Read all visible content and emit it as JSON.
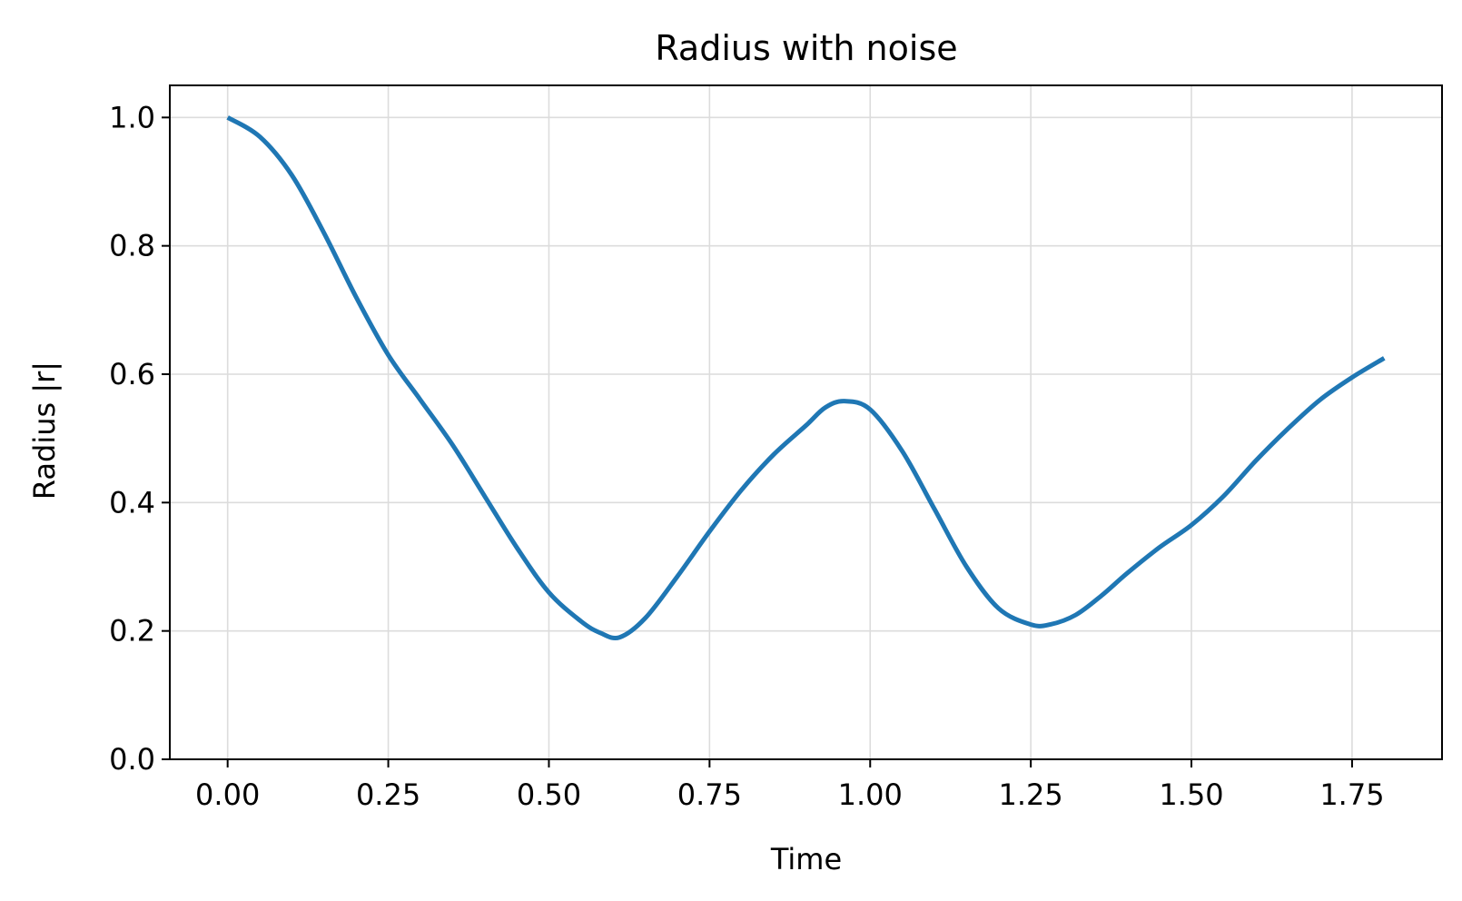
{
  "chart_data": {
    "type": "line",
    "title": "Radius with noise",
    "xlabel": "Time",
    "ylabel": "Radius |r|",
    "xlim": [
      -0.09,
      1.89
    ],
    "ylim": [
      0.0,
      1.05
    ],
    "x_ticks": [
      0.0,
      0.25,
      0.5,
      0.75,
      1.0,
      1.25,
      1.5,
      1.75
    ],
    "x_tick_labels": [
      "0.00",
      "0.25",
      "0.50",
      "0.75",
      "1.00",
      "1.25",
      "1.50",
      "1.75"
    ],
    "y_ticks": [
      0.0,
      0.2,
      0.4,
      0.6,
      0.8,
      1.0
    ],
    "y_tick_labels": [
      "0.0",
      "0.2",
      "0.4",
      "0.6",
      "0.8",
      "1.0"
    ],
    "grid": true,
    "line_color": "#1f77b4",
    "series": [
      {
        "x": [
          0.0,
          0.05,
          0.1,
          0.15,
          0.2,
          0.25,
          0.3,
          0.35,
          0.4,
          0.45,
          0.5,
          0.55,
          0.58,
          0.61,
          0.65,
          0.7,
          0.75,
          0.8,
          0.85,
          0.9,
          0.93,
          0.96,
          1.0,
          1.05,
          1.1,
          1.15,
          1.2,
          1.25,
          1.28,
          1.32,
          1.36,
          1.4,
          1.45,
          1.5,
          1.55,
          1.6,
          1.65,
          1.7,
          1.75,
          1.8
        ],
        "y": [
          1.0,
          0.97,
          0.91,
          0.82,
          0.72,
          0.63,
          0.56,
          0.49,
          0.41,
          0.33,
          0.26,
          0.215,
          0.197,
          0.19,
          0.22,
          0.285,
          0.355,
          0.42,
          0.475,
          0.52,
          0.548,
          0.558,
          0.545,
          0.48,
          0.39,
          0.3,
          0.235,
          0.21,
          0.21,
          0.225,
          0.255,
          0.29,
          0.33,
          0.365,
          0.41,
          0.465,
          0.515,
          0.56,
          0.595,
          0.625
        ]
      }
    ]
  }
}
